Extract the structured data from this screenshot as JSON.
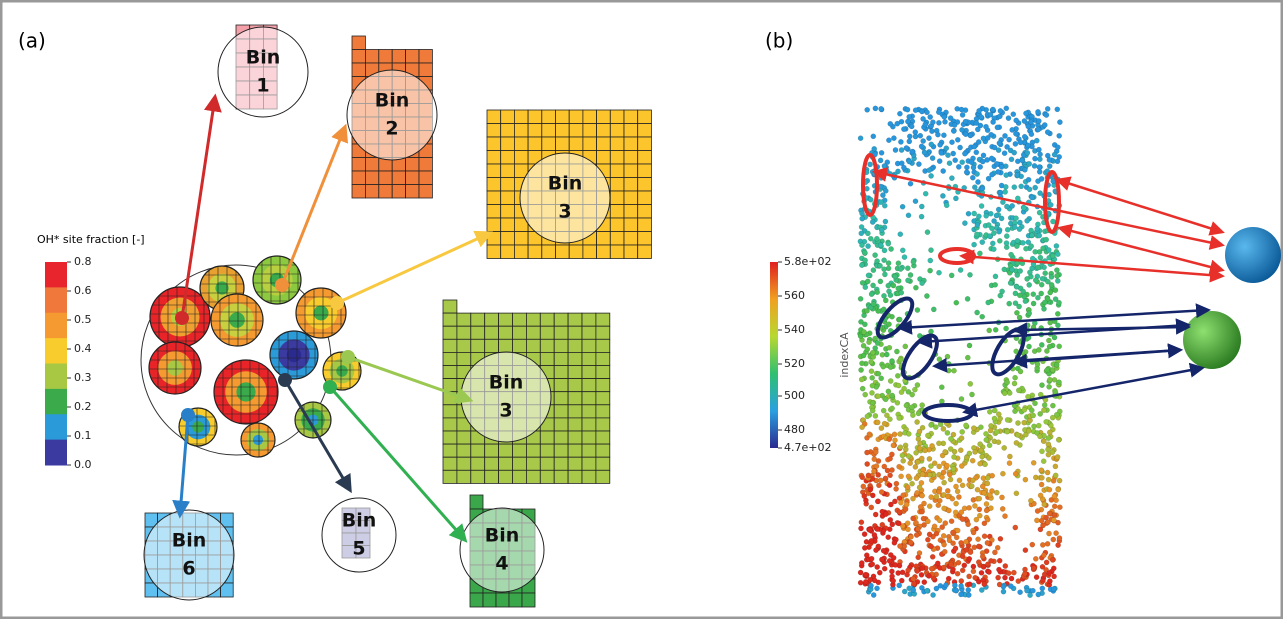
{
  "panel_a": {
    "label": "(a)",
    "colorbar": {
      "title": "OH* site fraction [-]",
      "ticks": [
        "0.8",
        "0.6",
        "0.5",
        "0.4",
        "0.3",
        "0.2",
        "0.1",
        "0.0"
      ]
    },
    "bins": [
      {
        "word": "Bin",
        "number": "1"
      },
      {
        "word": "Bin",
        "number": "2"
      },
      {
        "word": "Bin",
        "number": "3"
      },
      {
        "word": "Bin",
        "number": "3"
      },
      {
        "word": "Bin",
        "number": "4"
      },
      {
        "word": "Bin",
        "number": "5"
      },
      {
        "word": "Bin",
        "number": "6"
      }
    ]
  },
  "panel_b": {
    "label": "(b)",
    "colorbar": {
      "title": "indexCA",
      "ticks": [
        "5.8e+02",
        "560",
        "540",
        "520",
        "500",
        "480",
        "4.7e+02"
      ]
    }
  }
}
